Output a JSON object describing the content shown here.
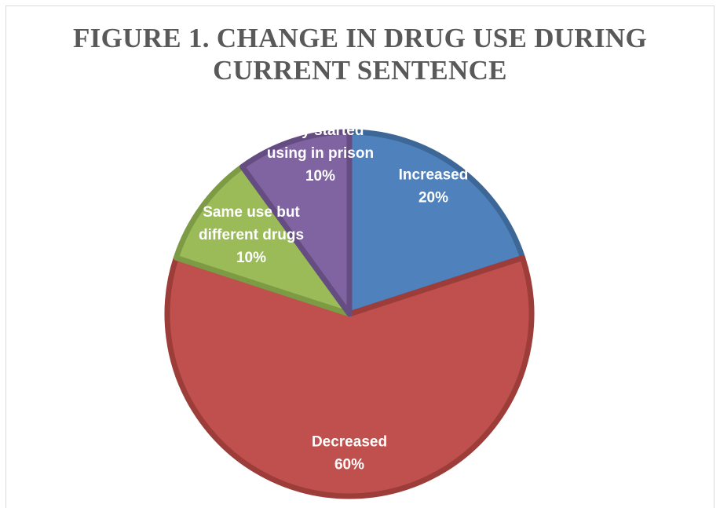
{
  "chart_data": {
    "type": "pie",
    "title_lines": [
      "FIGURE 1. CHANGE IN DRUG USE DURING",
      "CURRENT SENTENCE"
    ],
    "slices": [
      {
        "label_lines": [
          "Increased"
        ],
        "value": 20,
        "value_label": "20%",
        "color": "#4f81bd",
        "edge": "#3c6797"
      },
      {
        "label_lines": [
          "Decreased"
        ],
        "value": 60,
        "value_label": "60%",
        "color": "#c0504d",
        "edge": "#9c3d3a"
      },
      {
        "label_lines": [
          "Same use but",
          "different drugs"
        ],
        "value": 10,
        "value_label": "10%",
        "color": "#9bbb59",
        "edge": "#7d9a44"
      },
      {
        "label_lines": [
          "Only started",
          "using in prison"
        ],
        "value": 10,
        "value_label": "10%",
        "color": "#8064a2",
        "edge": "#654d82"
      }
    ]
  }
}
